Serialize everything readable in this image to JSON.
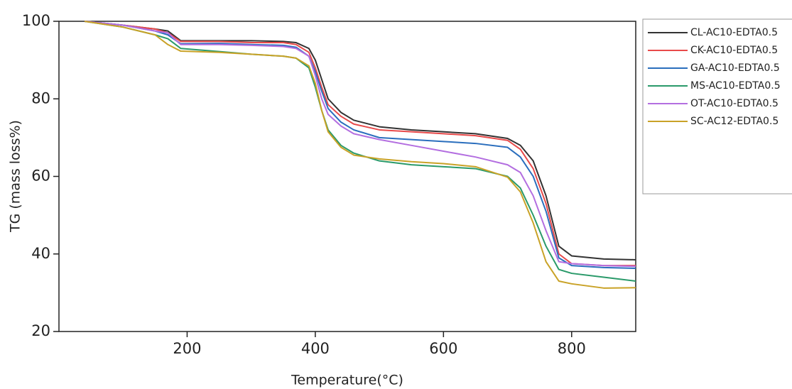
{
  "chart_data": {
    "type": "line",
    "x_label": "Temperature(°C)",
    "y_label": "TG (mass loss%)",
    "xlim": [
      0,
      900
    ],
    "ylim": [
      20,
      100
    ],
    "xticks": [
      200,
      400,
      600,
      800
    ],
    "yticks": [
      20,
      40,
      60,
      80,
      100
    ],
    "x": [
      40,
      100,
      150,
      170,
      190,
      250,
      300,
      350,
      370,
      390,
      400,
      410,
      420,
      440,
      460,
      500,
      550,
      600,
      650,
      700,
      720,
      740,
      760,
      780,
      800,
      850,
      900
    ],
    "series": [
      {
        "name": "CL-AC10-EDTA0.5",
        "color": "#333333",
        "values": [
          100,
          99,
          98,
          97.5,
          95,
          95,
          95,
          94.8,
          94.5,
          93,
          90,
          85,
          80,
          76.5,
          74.5,
          72.8,
          72,
          71.5,
          71,
          69.8,
          68,
          64,
          55,
          42,
          39.5,
          38.7,
          38.5
        ]
      },
      {
        "name": "CK-AC10-EDTA0.5",
        "color": "#e84a4a",
        "values": [
          100,
          99,
          98,
          97,
          94.8,
          94.8,
          94.5,
          94.5,
          94,
          92,
          88,
          83,
          78.5,
          75.5,
          73.5,
          72,
          71.5,
          71,
          70.5,
          69.3,
          67,
          62,
          53,
          40,
          37.5,
          37,
          37
        ]
      },
      {
        "name": "GA-AC10-EDTA0.5",
        "color": "#2a6ebd",
        "values": [
          100,
          99,
          97.5,
          96.5,
          94.2,
          94.3,
          94,
          93.8,
          93.3,
          91,
          87,
          82,
          77.5,
          74,
          72,
          70,
          69.5,
          69,
          68.5,
          67.5,
          65,
          60,
          51,
          39,
          37,
          36.5,
          36.3
        ]
      },
      {
        "name": "MS-AC10-EDTA0.5",
        "color": "#2a9a6a",
        "values": [
          100,
          98.5,
          96.5,
          95.5,
          93,
          92.2,
          91.5,
          91,
          90.5,
          88,
          83,
          77,
          72,
          68,
          66,
          64,
          63,
          62.5,
          62,
          60,
          57,
          50,
          42,
          36,
          35,
          34,
          33
        ]
      },
      {
        "name": "OT-AC10-EDTA0.5",
        "color": "#b36ee0",
        "values": [
          100,
          99,
          97.5,
          97,
          94,
          94,
          93.8,
          93.5,
          93,
          91,
          86,
          80,
          76,
          73,
          71,
          69.5,
          68,
          66.5,
          65,
          63,
          61,
          55,
          46,
          38,
          37.5,
          37,
          36.8
        ]
      },
      {
        "name": "SC-AC12-EDTA0.5",
        "color": "#c9a227",
        "values": [
          100,
          98.5,
          96.5,
          94,
          92.3,
          92,
          91.5,
          91,
          90.5,
          88.5,
          84,
          77,
          71.5,
          67.5,
          65.5,
          64.5,
          63.8,
          63.3,
          62.5,
          59.8,
          56,
          48,
          38,
          33,
          32.3,
          31.2,
          31.3
        ]
      }
    ]
  }
}
